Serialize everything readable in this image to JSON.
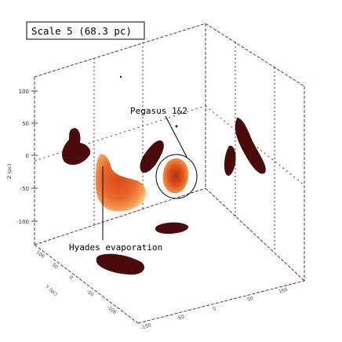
{
  "chart_data": {
    "type": "3d-density",
    "title": "Scale 5 (68.3 pc)",
    "zlabel": "Z (pc)",
    "xlabel": "",
    "ylabel": "Y (pc)",
    "z_ticks": [
      "100",
      "50",
      "0",
      "-50",
      "-100"
    ],
    "x_ticks": [
      "-100",
      "-50",
      "0",
      "50",
      "100"
    ],
    "y_ticks": [
      "-100",
      "-50",
      "0",
      "50",
      "100"
    ],
    "annotations": [
      {
        "text": "Pegasus 1&2"
      },
      {
        "text": "Hyades evaporation"
      }
    ],
    "colors": {
      "axis": "#7a2c2c",
      "dark_blob": "#4a0a0a",
      "mid": "#c0401a",
      "light": "#f07a30",
      "glow": "#f8b880"
    }
  }
}
